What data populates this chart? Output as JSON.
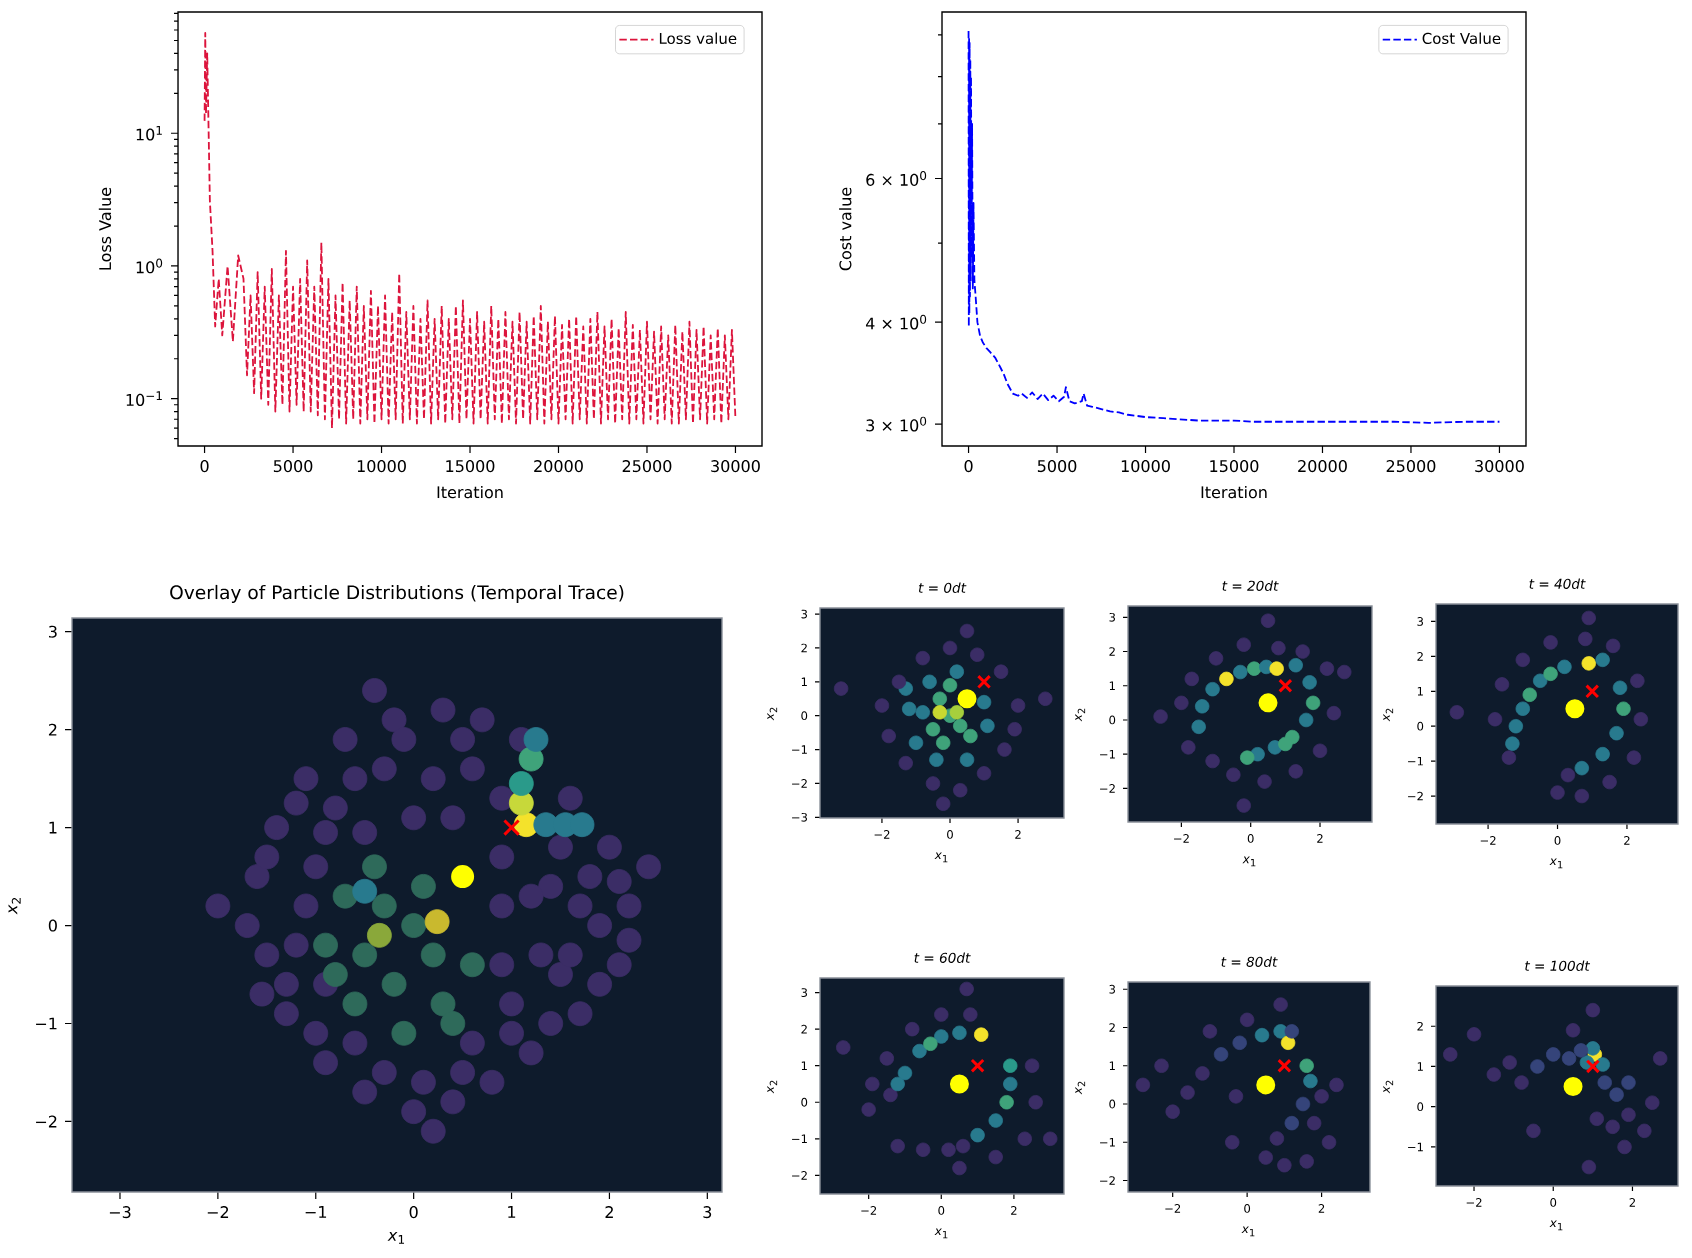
{
  "chart_data": [
    {
      "type": "line",
      "xlabel": "Iteration",
      "ylabel": "Loss Value",
      "log": "y",
      "legend": "top right",
      "line_style": "dashed",
      "xlim": [
        -1500,
        31500
      ],
      "xticks": [
        0,
        5000,
        10000,
        15000,
        20000,
        25000,
        30000
      ],
      "ylim": [
        0.044,
        82
      ],
      "yticks": [
        {
          "value": 0.05,
          "label": null
        },
        {
          "value": 0.06,
          "label": null
        },
        {
          "value": 0.07,
          "label": null
        },
        {
          "value": 0.08,
          "label": null
        },
        {
          "value": 0.09,
          "label": null
        },
        {
          "value": 0.1,
          "label": "10$^{−1}$"
        },
        {
          "value": 0.2,
          "label": null
        },
        {
          "value": 0.3,
          "label": null
        },
        {
          "value": 0.4,
          "label": null
        },
        {
          "value": 0.5,
          "label": null
        },
        {
          "value": 0.6,
          "label": null
        },
        {
          "value": 0.7,
          "label": null
        },
        {
          "value": 0.8,
          "label": null
        },
        {
          "value": 0.9,
          "label": null
        },
        {
          "value": 1,
          "label": "10$^{0}$"
        },
        {
          "value": 2,
          "label": null
        },
        {
          "value": 3,
          "label": null
        },
        {
          "value": 4,
          "label": null
        },
        {
          "value": 5,
          "label": null
        },
        {
          "value": 6,
          "label": null
        },
        {
          "value": 7,
          "label": null
        },
        {
          "value": 8,
          "label": null
        },
        {
          "value": 9,
          "label": null
        },
        {
          "value": 10,
          "label": "10$^{1}$"
        },
        {
          "value": 20,
          "label": null
        },
        {
          "value": 30,
          "label": null
        },
        {
          "value": 40,
          "label": null
        },
        {
          "value": 50,
          "label": null
        },
        {
          "value": 60,
          "label": null
        },
        {
          "value": 70,
          "label": null
        },
        {
          "value": 80,
          "label": null
        }
      ],
      "series": [
        {
          "name": "Loss value",
          "color": "#dc143c",
          "x": [
            0,
            40,
            80,
            150,
            300,
            450,
            600,
            800,
            1000,
            1300,
            1600,
            1900,
            2200,
            2400,
            2600,
            2800,
            3000,
            3200,
            3400,
            3600,
            3800,
            4000,
            4200,
            4400,
            4600,
            4800,
            5000,
            5200,
            5400,
            5600,
            5800,
            6000,
            6200,
            6400,
            6600,
            6800,
            7000,
            7200,
            7400,
            7600,
            7800,
            8000,
            8200,
            8400,
            8600,
            8800,
            9000,
            9200,
            9400,
            9600,
            9800,
            10000,
            10200,
            10400,
            10600,
            10800,
            11000,
            11200,
            11400,
            11600,
            11800,
            12000,
            12200,
            12400,
            12600,
            12800,
            13000,
            13200,
            13400,
            13600,
            13800,
            14000,
            14200,
            14400,
            14600,
            14800,
            15000,
            15200,
            15400,
            15600,
            15800,
            16000,
            16200,
            16400,
            16600,
            16800,
            17000,
            17200,
            17400,
            17600,
            17800,
            18000,
            18200,
            18400,
            18600,
            18800,
            19000,
            19200,
            19400,
            19600,
            19800,
            20000,
            20200,
            20400,
            20600,
            20800,
            21000,
            21200,
            21400,
            21600,
            21800,
            22000,
            22200,
            22400,
            22600,
            22800,
            23000,
            23200,
            23400,
            23600,
            23800,
            24000,
            24200,
            24400,
            24600,
            24800,
            25000,
            25200,
            25400,
            25600,
            25800,
            26000,
            26200,
            26400,
            26600,
            26800,
            27000,
            27200,
            27400,
            27600,
            27800,
            28000,
            28200,
            28400,
            28600,
            28800,
            29000,
            29200,
            29400,
            29600,
            29800,
            30000
          ],
          "values": [
            12.4,
            57,
            14,
            40,
            3.1,
            1.3,
            0.35,
            0.8,
            0.3,
            1.0,
            0.27,
            1.2,
            0.8,
            0.15,
            0.6,
            0.11,
            0.9,
            0.1,
            0.7,
            0.09,
            0.95,
            0.08,
            0.6,
            0.09,
            1.3,
            0.08,
            0.7,
            0.09,
            0.8,
            0.08,
            1.1,
            0.08,
            0.7,
            0.075,
            1.5,
            0.07,
            0.8,
            0.06,
            0.6,
            0.07,
            0.75,
            0.065,
            0.55,
            0.07,
            0.7,
            0.065,
            0.5,
            0.07,
            0.65,
            0.065,
            0.5,
            0.07,
            0.6,
            0.065,
            0.45,
            0.07,
            0.88,
            0.065,
            0.45,
            0.07,
            0.5,
            0.065,
            0.4,
            0.07,
            0.55,
            0.065,
            0.4,
            0.07,
            0.5,
            0.065,
            0.4,
            0.07,
            0.5,
            0.065,
            0.55,
            0.07,
            0.4,
            0.065,
            0.45,
            0.07,
            0.38,
            0.065,
            0.5,
            0.07,
            0.4,
            0.065,
            0.45,
            0.07,
            0.38,
            0.065,
            0.45,
            0.07,
            0.38,
            0.065,
            0.42,
            0.07,
            0.5,
            0.065,
            0.38,
            0.07,
            0.42,
            0.065,
            0.36,
            0.07,
            0.4,
            0.065,
            0.42,
            0.07,
            0.35,
            0.065,
            0.4,
            0.07,
            0.45,
            0.065,
            0.35,
            0.07,
            0.4,
            0.065,
            0.34,
            0.07,
            0.45,
            0.065,
            0.36,
            0.07,
            0.33,
            0.065,
            0.38,
            0.07,
            0.32,
            0.065,
            0.35,
            0.07,
            0.3,
            0.065,
            0.36,
            0.065,
            0.32,
            0.07,
            0.38,
            0.065,
            0.33,
            0.07,
            0.35,
            0.065,
            0.3,
            0.07,
            0.34,
            0.065,
            0.3,
            0.07,
            0.33,
            0.07
          ]
        }
      ]
    },
    {
      "type": "line",
      "xlabel": "Iteration",
      "ylabel": "Cost value",
      "log": "y",
      "legend": "top right",
      "line_style": "dashed",
      "xlim": [
        -1500,
        31500
      ],
      "xticks": [
        0,
        5000,
        10000,
        15000,
        20000,
        25000,
        30000
      ],
      "ylim": [
        2.82,
        9.6
      ],
      "yticks": [
        {
          "value": 3,
          "label": "3 × 10$^{0}$"
        },
        {
          "value": 4,
          "label": "4 × 10$^{0}$"
        },
        {
          "value": 5,
          "label": null
        },
        {
          "value": 6,
          "label": "6 × 10$^{0}$"
        },
        {
          "value": 7,
          "label": null
        },
        {
          "value": 8,
          "label": null
        },
        {
          "value": 9,
          "label": null
        }
      ],
      "series": [
        {
          "name": "Cost Value",
          "color": "#0000ff",
          "x": [
            0,
            15,
            30,
            45,
            60,
            80,
            100,
            120,
            140,
            170,
            200,
            240,
            280,
            330,
            400,
            500,
            650,
            800,
            1000,
            1200,
            1500,
            1800,
            2000,
            2200,
            2500,
            2800,
            3000,
            3300,
            3600,
            3900,
            4200,
            4500,
            4800,
            5100,
            5400,
            5500,
            5700,
            6000,
            6400,
            6500,
            6700,
            7000,
            7500,
            8000,
            8500,
            9000,
            9500,
            10000,
            11000,
            12000,
            13000,
            14000,
            15000,
            16000,
            18000,
            20000,
            22000,
            24000,
            26000,
            28000,
            30000
          ],
          "values": [
            9.1,
            3.95,
            8.9,
            4.1,
            8.8,
            4.3,
            8.4,
            4.5,
            8.0,
            4.8,
            7.0,
            4.4,
            5.6,
            4.5,
            4.3,
            4.0,
            3.85,
            3.78,
            3.72,
            3.68,
            3.62,
            3.52,
            3.45,
            3.36,
            3.27,
            3.25,
            3.27,
            3.23,
            3.28,
            3.22,
            3.27,
            3.21,
            3.25,
            3.2,
            3.24,
            3.33,
            3.2,
            3.18,
            3.2,
            3.27,
            3.16,
            3.15,
            3.13,
            3.11,
            3.1,
            3.08,
            3.07,
            3.06,
            3.05,
            3.04,
            3.03,
            3.03,
            3.03,
            3.02,
            3.02,
            3.02,
            3.02,
            3.02,
            3.01,
            3.02,
            3.02
          ]
        }
      ]
    },
    {
      "type": "scatter",
      "title": "Overlay of Particle Distributions (Temporal Trace)",
      "xlabel": "*x*$_{1}$",
      "ylabel": "*x*$_{2}$",
      "xlim": [
        -3.49,
        3.15
      ],
      "ylim": [
        -2.72,
        3.14
      ],
      "xticks": [
        {
          "value": -3,
          "label": "−3"
        },
        {
          "value": -2,
          "label": "−2"
        },
        {
          "value": -1,
          "label": "−1"
        },
        0,
        1,
        2,
        3
      ],
      "yticks": [
        {
          "value": -2,
          "label": "−2"
        },
        {
          "value": -1,
          "label": "−1"
        },
        0,
        1,
        2,
        3
      ],
      "series": [
        {
          "marker": "circle",
          "x": [
            -1.6,
            -1.5,
            -1.4,
            -1.3,
            -1.1,
            -0.9,
            -0.7,
            -0.5,
            -0.2,
            0.0,
            0.3,
            0.4,
            0.7,
            0.8,
            1.1,
            1.2,
            1.6,
            1.7,
            2.0,
            2.1,
            2.2,
            1.9,
            1.5,
            1.4,
            -1.0,
            -0.8,
            -0.3,
            0.2,
            0.6,
            0.9,
            1.5,
            1.8,
            -1.2,
            -0.6,
            0.6,
            1.0,
            -2.0,
            2.4,
            -0.4,
            0.2,
            -1.7,
            -1.55,
            -1.2,
            -1.5,
            -1.0,
            -0.3,
            0.1,
            0.5,
            1.0,
            1.4,
            1.9,
            2.1,
            1.7,
            1.2,
            1.3,
            0.9,
            -0.1,
            0.5,
            -0.6,
            0.9,
            -1.1,
            -0.9,
            -0.5,
            0.0,
            0.4,
            0.9,
            -1.3,
            -0.9,
            2.2,
            1.6,
            -0.7,
            -0.5,
            -0.3,
            -0.2,
            0.0,
            0.2,
            0.3,
            -0.6,
            0.1,
            -0.9,
            0.6,
            -0.4,
            -0.1,
            0.4,
            -0.8,
            0.24,
            -0.35,
            -0.5,
            1.15,
            1.1,
            1.1,
            1.35,
            1.55,
            1.72,
            1.2,
            1.25
          ],
          "values": [
            0.5,
            -0.3,
            1.0,
            -0.9,
            1.5,
            -1.4,
            1.9,
            -1.7,
            2.1,
            -1.9,
            2.2,
            -1.8,
            2.1,
            -1.6,
            1.9,
            -1.3,
            1.3,
            -0.9,
            0.8,
            -0.4,
            0.2,
            0.0,
            -0.5,
            0.4,
            0.6,
            1.2,
            1.6,
            1.5,
            1.6,
            0.7,
            0.8,
            0.5,
            -0.2,
            -1.2,
            -1.2,
            -0.8,
            0.2,
            0.6,
            2.4,
            -2.1,
            0.0,
            -0.7,
            1.25,
            0.7,
            -1.1,
            -1.5,
            -1.6,
            -1.5,
            -1.1,
            -1.0,
            -0.6,
            0.45,
            0.2,
            0.3,
            -0.3,
            0.2,
            1.9,
            1.9,
            1.5,
            1.3,
            0.2,
            0.95,
            0.95,
            1.1,
            1.1,
            -0.4,
            -0.6,
            -0.6,
            -0.15,
            -0.3,
            0.3,
            -0.3,
            0.2,
            -0.6,
            0.0,
            -0.3,
            -0.8,
            -0.8,
            0.4,
            -0.2,
            -0.4,
            0.6,
            -1.1,
            -1.0,
            -0.5,
            0.04,
            -0.1,
            0.35,
            1.03,
            1.25,
            1.45,
            1.03,
            1.03,
            1.03,
            1.7,
            1.9
          ],
          "colors": [
            "#3b2d66",
            "#3b2d66",
            "#3b2d66",
            "#3b2d66",
            "#3b2d66",
            "#3b2d66",
            "#3b2d66",
            "#3b2d66",
            "#3b2d66",
            "#3b2d66",
            "#3b2d66",
            "#3b2d66",
            "#3b2d66",
            "#3b2d66",
            "#3b2d66",
            "#3b2d66",
            "#3b2d66",
            "#3b2d66",
            "#3b2d66",
            "#3b2d66",
            "#3b2d66",
            "#3b2d66",
            "#3b2d66",
            "#3b2d66",
            "#3b2d66",
            "#3b2d66",
            "#3b2d66",
            "#3b2d66",
            "#3b2d66",
            "#3b2d66",
            "#3b2d66",
            "#3b2d66",
            "#3b2d66",
            "#3b2d66",
            "#3b2d66",
            "#3b2d66",
            "#3b2d66",
            "#3b2d66",
            "#3b2d66",
            "#3b2d66",
            "#3b2d66",
            "#3b2d66",
            "#3b2d66",
            "#3b2d66",
            "#3b2d66",
            "#3b2d66",
            "#3b2d66",
            "#3b2d66",
            "#3b2d66",
            "#3b2d66",
            "#3b2d66",
            "#3b2d66",
            "#3b2d66",
            "#3b2d66",
            "#3b2d66",
            "#3b2d66",
            "#3b2d66",
            "#3b2d66",
            "#3b2d66",
            "#3b2d66",
            "#3b2d66",
            "#3b2d66",
            "#3b2d66",
            "#3b2d66",
            "#3b2d66",
            "#3b2d66",
            "#3b2d66",
            "#3b2d66",
            "#3b2d66",
            "#3b2d66",
            "#2e6a5a",
            "#2e6a5a",
            "#2e6a5a",
            "#2e6a5a",
            "#2e6a5a",
            "#2e6a5a",
            "#2e6a5a",
            "#2e6a5a",
            "#2e6a5a",
            "#2e6a5a",
            "#2e6a5a",
            "#2e6a5a",
            "#2e6a5a",
            "#2e6a5a",
            "#2e6a5a",
            "#c9b92e",
            "#8aa83a",
            "#287a8e",
            "#f4e22b",
            "#c7d83a",
            "#2a9a8a",
            "#287a8e",
            "#287a8e",
            "#287a8e",
            "#3fa37a",
            "#287a8e"
          ]
        },
        {
          "marker": "circle",
          "color": "#ffff00",
          "x": [
            0.5
          ],
          "values": [
            0.5
          ]
        },
        {
          "marker": "cross",
          "color": "#ff0000",
          "x": [
            1
          ],
          "values": [
            1
          ]
        }
      ]
    },
    {
      "type": "scatter",
      "title": "t = 0dt",
      "xlabel": "*x*$_{1}$",
      "ylabel": "*x*$_{2}$",
      "xlim": [
        -3.82,
        3.35
      ],
      "ylim": [
        -3.02,
        3.18
      ],
      "xticks": [
        {
          "value": -2,
          "label": "−2"
        },
        0,
        2
      ],
      "yticks": [
        {
          "value": -3,
          "label": "−3"
        },
        {
          "value": -2,
          "label": "−2"
        },
        {
          "value": -1,
          "label": "−1"
        },
        0,
        1,
        2,
        3
      ],
      "series": [
        {
          "marker": "circle",
          "x": [
            0.0,
            -0.3,
            0.3,
            -0.5,
            -0.2,
            0.6,
            0.0,
            -0.3,
            0.2,
            -1.2,
            -1.0,
            -0.6,
            0.2,
            1.0,
            1.1,
            0.5,
            -0.4,
            -1.3,
            -0.8,
            -2.0,
            -1.8,
            -1.5,
            -1.3,
            -0.8,
            -0.5,
            0.0,
            0.3,
            0.8,
            1.0,
            1.5,
            1.6,
            2.0,
            1.9,
            -3.2,
            2.8,
            -0.2,
            0.5
          ],
          "values": [
            0.0,
            0.5,
            -0.3,
            -0.4,
            -0.8,
            -0.6,
            0.9,
            0.1,
            0.1,
            0.2,
            -0.8,
            1.0,
            1.3,
            0.4,
            -0.3,
            -1.3,
            -1.3,
            0.8,
            0.1,
            0.3,
            -0.6,
            1.0,
            -1.4,
            1.7,
            -2.0,
            2.0,
            -2.2,
            1.8,
            -1.7,
            1.3,
            -1.0,
            0.3,
            -0.4,
            0.8,
            0.5,
            -2.6,
            2.5
          ],
          "colors": [
            "#3fa37a",
            "#3fa37a",
            "#3fa37a",
            "#3fa37a",
            "#3fa37a",
            "#3fa37a",
            "#3fa37a",
            "#c8d830",
            "#a6cf3c",
            "#287a8e",
            "#287a8e",
            "#287a8e",
            "#287a8e",
            "#287a8e",
            "#287a8e",
            "#287a8e",
            "#287a8e",
            "#287a8e",
            "#287a8e",
            "#3b2d66",
            "#3b2d66",
            "#3b2d66",
            "#3b2d66",
            "#3b2d66",
            "#3b2d66",
            "#3b2d66",
            "#3b2d66",
            "#3b2d66",
            "#3b2d66",
            "#3b2d66",
            "#3b2d66",
            "#3b2d66",
            "#3b2d66",
            "#3b2d66",
            "#3b2d66",
            "#3b2d66",
            "#3b2d66"
          ]
        },
        {
          "marker": "circle",
          "color": "#ffff00",
          "x": [
            0.5
          ],
          "values": [
            0.5
          ]
        },
        {
          "marker": "cross",
          "color": "#ff0000",
          "x": [
            1
          ],
          "values": [
            1
          ]
        }
      ]
    },
    {
      "type": "scatter",
      "title": "t = 20dt",
      "xlabel": "*x*$_{1}$",
      "ylabel": "*x*$_{2}$",
      "xlim": [
        -3.54,
        3.5
      ],
      "ylim": [
        -2.98,
        3.33
      ],
      "xticks": [
        {
          "value": -2,
          "label": "−2"
        },
        0,
        2
      ],
      "yticks": [
        {
          "value": -2,
          "label": "−2"
        },
        {
          "value": -1,
          "label": "−1"
        },
        0,
        1,
        2,
        3
      ],
      "series": [
        {
          "marker": "circle",
          "x": [
            -1.5,
            -1.4,
            -1.1,
            -0.7,
            -0.3,
            0.1,
            0.45,
            0.75,
            1.3,
            1.7,
            1.8,
            1.6,
            1.2,
            0.7,
            0.2,
            -0.1,
            1.0,
            -2.0,
            -1.8,
            -1.7,
            -1.0,
            -0.2,
            0.8,
            1.5,
            2.2,
            2.4,
            2.0,
            1.3,
            0.4,
            -0.5,
            -1.1,
            -2.6,
            0.5,
            2.7,
            -0.2
          ],
          "values": [
            -0.2,
            0.4,
            0.9,
            1.2,
            1.4,
            1.5,
            1.55,
            1.5,
            1.6,
            1.1,
            0.5,
            0.0,
            -0.5,
            -0.8,
            -1.0,
            -1.1,
            -0.7,
            0.5,
            -0.8,
            1.2,
            1.8,
            2.2,
            2.1,
            2.0,
            1.5,
            0.2,
            -0.9,
            -1.5,
            -1.8,
            -1.6,
            -1.2,
            0.1,
            2.9,
            1.4,
            -2.5
          ],
          "colors": [
            "#287a8e",
            "#287a8e",
            "#287a8e",
            "#f4e22b",
            "#287a8e",
            "#3fa37a",
            "#287a8e",
            "#f4e22b",
            "#287a8e",
            "#287a8e",
            "#3fa37a",
            "#287a8e",
            "#3fa37a",
            "#287a8e",
            "#287a8e",
            "#3fa37a",
            "#3fa37a",
            "#3b2d66",
            "#3b2d66",
            "#3b2d66",
            "#3b2d66",
            "#3b2d66",
            "#3b2d66",
            "#3b2d66",
            "#3b2d66",
            "#3b2d66",
            "#3b2d66",
            "#3b2d66",
            "#3b2d66",
            "#3b2d66",
            "#3b2d66",
            "#3b2d66",
            "#3b2d66",
            "#3b2d66",
            "#3b2d66"
          ]
        },
        {
          "marker": "circle",
          "color": "#ffff00",
          "x": [
            0.5
          ],
          "values": [
            0.5
          ]
        },
        {
          "marker": "cross",
          "color": "#ff0000",
          "x": [
            1
          ],
          "values": [
            1
          ]
        }
      ]
    },
    {
      "type": "scatter",
      "title": "t = 40dt",
      "xlabel": "*x*$_{1}$",
      "ylabel": "*x*$_{2}$",
      "xlim": [
        -3.5,
        3.47
      ],
      "ylim": [
        -2.8,
        3.5
      ],
      "xticks": [
        {
          "value": -2,
          "label": "−2"
        },
        0,
        2
      ],
      "yticks": [
        {
          "value": -2,
          "label": "−2"
        },
        {
          "value": -1,
          "label": "−1"
        },
        0,
        1,
        2,
        3
      ],
      "series": [
        {
          "marker": "circle",
          "x": [
            -1.3,
            -1.0,
            -0.5,
            0.2,
            0.9,
            1.3,
            -1.2,
            -0.8,
            -0.2,
            1.8,
            1.9,
            1.7,
            1.3,
            0.7,
            0.3,
            -1.8,
            -1.6,
            -1.0,
            -0.2,
            0.8,
            1.6,
            2.3,
            2.4,
            2.2,
            1.5,
            0.7,
            0.0,
            -2.9,
            -1.4,
            0.9
          ],
          "values": [
            -0.5,
            0.5,
            1.3,
            1.7,
            1.8,
            1.9,
            0.0,
            0.9,
            1.5,
            1.1,
            0.5,
            -0.2,
            -0.8,
            -1.2,
            -1.4,
            0.2,
            1.2,
            1.9,
            2.4,
            2.5,
            2.3,
            1.3,
            0.2,
            -0.9,
            -1.6,
            -2.0,
            -1.9,
            0.4,
            -0.9,
            3.1
          ],
          "colors": [
            "#287a8e",
            "#287a8e",
            "#287a8e",
            "#287a8e",
            "#f4e22b",
            "#287a8e",
            "#287a8e",
            "#3fa37a",
            "#3fa37a",
            "#287a8e",
            "#3fa37a",
            "#287a8e",
            "#287a8e",
            "#287a8e",
            "#3b2d66",
            "#3b2d66",
            "#3b2d66",
            "#3b2d66",
            "#3b2d66",
            "#3b2d66",
            "#3b2d66",
            "#3b2d66",
            "#3b2d66",
            "#3b2d66",
            "#3b2d66",
            "#3b2d66",
            "#3b2d66",
            "#3b2d66",
            "#3b2d66",
            "#3b2d66"
          ]
        },
        {
          "marker": "circle",
          "color": "#ffff00",
          "x": [
            0.5
          ],
          "values": [
            0.5
          ]
        },
        {
          "marker": "cross",
          "color": "#ff0000",
          "x": [
            1
          ],
          "values": [
            1
          ]
        }
      ]
    },
    {
      "type": "scatter",
      "title": "t = 60dt",
      "xlabel": "*x*$_{1}$",
      "ylabel": "*x*$_{2}$",
      "xlim": [
        -3.34,
        3.38
      ],
      "ylim": [
        -2.51,
        3.4
      ],
      "xticks": [
        {
          "value": -2,
          "label": "−2"
        },
        0,
        2
      ],
      "yticks": [
        {
          "value": -2,
          "label": "−2"
        },
        {
          "value": -1,
          "label": "−1"
        },
        0,
        1,
        2,
        3
      ],
      "series": [
        {
          "marker": "circle",
          "x": [
            -1.4,
            -1.0,
            -0.6,
            0.0,
            0.5,
            1.1,
            -1.2,
            -0.3,
            1.9,
            1.9,
            1.8,
            1.5,
            1.0,
            0.6,
            0.2,
            -1.9,
            -1.5,
            -0.8,
            0.0,
            0.8,
            -2.7,
            -2.0,
            2.5,
            2.6,
            2.3,
            1.5,
            0.5,
            -0.5,
            -1.2,
            3.0,
            0.7
          ],
          "values": [
            0.2,
            0.8,
            1.4,
            1.8,
            1.9,
            1.85,
            0.5,
            1.6,
            1.0,
            0.5,
            0.0,
            -0.5,
            -0.9,
            -1.2,
            -1.3,
            0.5,
            1.2,
            2.0,
            2.4,
            2.4,
            1.5,
            -0.2,
            1.0,
            0.0,
            -1.0,
            -1.5,
            -1.8,
            -1.3,
            -1.2,
            -1.0,
            3.1
          ],
          "colors": [
            "#3b2d66",
            "#287a8e",
            "#287a8e",
            "#287a8e",
            "#287a8e",
            "#f4e22b",
            "#287a8e",
            "#3fa37a",
            "#2a9a8a",
            "#287a8e",
            "#3fa37a",
            "#287a8e",
            "#287a8e",
            "#3b2d66",
            "#3b2d66",
            "#3b2d66",
            "#3b2d66",
            "#3b2d66",
            "#3b2d66",
            "#3b2d66",
            "#3b2d66",
            "#3b2d66",
            "#3b2d66",
            "#3b2d66",
            "#3b2d66",
            "#3b2d66",
            "#3b2d66",
            "#3b2d66",
            "#3b2d66",
            "#3b2d66",
            "#3b2d66"
          ]
        },
        {
          "marker": "circle",
          "color": "#ffff00",
          "x": [
            0.5
          ],
          "values": [
            0.5
          ]
        },
        {
          "marker": "cross",
          "color": "#ff0000",
          "x": [
            1
          ],
          "values": [
            1
          ]
        }
      ]
    },
    {
      "type": "scatter",
      "title": "t = 80dt",
      "xlabel": "*x*$_{1}$",
      "ylabel": "*x*$_{2}$",
      "xlim": [
        -3.2,
        3.3
      ],
      "ylim": [
        -2.3,
        3.19
      ],
      "xticks": [
        {
          "value": -2,
          "label": "−2"
        },
        0,
        2
      ],
      "yticks": [
        {
          "value": -2,
          "label": "−2"
        },
        {
          "value": -1,
          "label": "−1"
        },
        0,
        1,
        2,
        3
      ],
      "series": [
        {
          "marker": "circle",
          "x": [
            -1.6,
            -1.2,
            -0.7,
            -0.2,
            0.4,
            0.9,
            1.1,
            1.2,
            1.6,
            1.7,
            1.5,
            1.2,
            0.8,
            2.0,
            1.8,
            -2.3,
            -2.0,
            -1.0,
            0.0,
            -0.4,
            0.5,
            1.0,
            2.4,
            2.2,
            1.6,
            -2.8,
            0.9,
            -0.3
          ],
          "values": [
            0.3,
            0.8,
            1.3,
            1.6,
            1.8,
            1.9,
            1.6,
            1.9,
            1.0,
            0.6,
            0.0,
            -0.5,
            -0.9,
            0.2,
            -0.5,
            1.0,
            -0.2,
            1.9,
            2.2,
            -1.0,
            -1.4,
            -1.6,
            0.5,
            -1.0,
            -1.5,
            0.5,
            2.6,
            0.2
          ],
          "colors": [
            "#3b2d66",
            "#3b2d66",
            "#35447a",
            "#35447a",
            "#287a8e",
            "#287a8e",
            "#f4e22b",
            "#35447a",
            "#3fa37a",
            "#287a8e",
            "#35447a",
            "#35447a",
            "#3b2d66",
            "#3b2d66",
            "#3b2d66",
            "#3b2d66",
            "#3b2d66",
            "#3b2d66",
            "#3b2d66",
            "#3b2d66",
            "#3b2d66",
            "#3b2d66",
            "#3b2d66",
            "#3b2d66",
            "#3b2d66",
            "#3b2d66",
            "#3b2d66",
            "#3b2d66"
          ]
        },
        {
          "marker": "circle",
          "color": "#ffff00",
          "x": [
            0.5
          ],
          "values": [
            0.5
          ]
        },
        {
          "marker": "cross",
          "color": "#ff0000",
          "x": [
            1
          ],
          "values": [
            1
          ]
        }
      ]
    },
    {
      "type": "scatter",
      "title": "t = 100dt",
      "xlabel": "*x*$_{1}$",
      "ylabel": "*x*$_{2}$",
      "xlim": [
        -2.96,
        3.15
      ],
      "ylim": [
        -1.97,
        3.0
      ],
      "xticks": [
        {
          "value": -2,
          "label": "−2"
        },
        0,
        2
      ],
      "yticks": [
        {
          "value": -1,
          "label": "−1"
        },
        0,
        1,
        2
      ],
      "series": [
        {
          "marker": "circle",
          "x": [
            1.05,
            1.0,
            1.25,
            0.85,
            -2.0,
            -1.5,
            -1.1,
            -0.8,
            -0.4,
            0.0,
            0.4,
            0.7,
            0.5,
            1.0,
            -2.6,
            1.3,
            1.6,
            1.9,
            1.5,
            2.3,
            1.1,
            1.9,
            2.5,
            1.8,
            -0.5,
            0.9,
            2.7
          ],
          "values": [
            1.3,
            1.45,
            1.05,
            1.1,
            1.8,
            0.8,
            1.1,
            0.6,
            1.0,
            1.3,
            1.2,
            1.4,
            1.9,
            2.4,
            1.3,
            0.6,
            0.3,
            -0.2,
            -0.5,
            -0.6,
            -0.3,
            0.6,
            0.1,
            -1.0,
            -0.6,
            -1.5,
            1.2
          ],
          "colors": [
            "#f4e22b",
            "#287a8e",
            "#287a8e",
            "#287a8e",
            "#3b2d66",
            "#3b2d66",
            "#3b2d66",
            "#3b2d66",
            "#35447a",
            "#35447a",
            "#35447a",
            "#35447a",
            "#3b2d66",
            "#3b2d66",
            "#3b2d66",
            "#35447a",
            "#35447a",
            "#3b2d66",
            "#3b2d66",
            "#3b2d66",
            "#3b2d66",
            "#35447a",
            "#3b2d66",
            "#3b2d66",
            "#3b2d66",
            "#3b2d66",
            "#3b2d66"
          ]
        },
        {
          "marker": "circle",
          "color": "#ffff00",
          "x": [
            0.5
          ],
          "values": [
            0.5
          ]
        },
        {
          "marker": "cross",
          "color": "#ff0000",
          "x": [
            1
          ],
          "values": [
            1
          ]
        }
      ]
    }
  ]
}
